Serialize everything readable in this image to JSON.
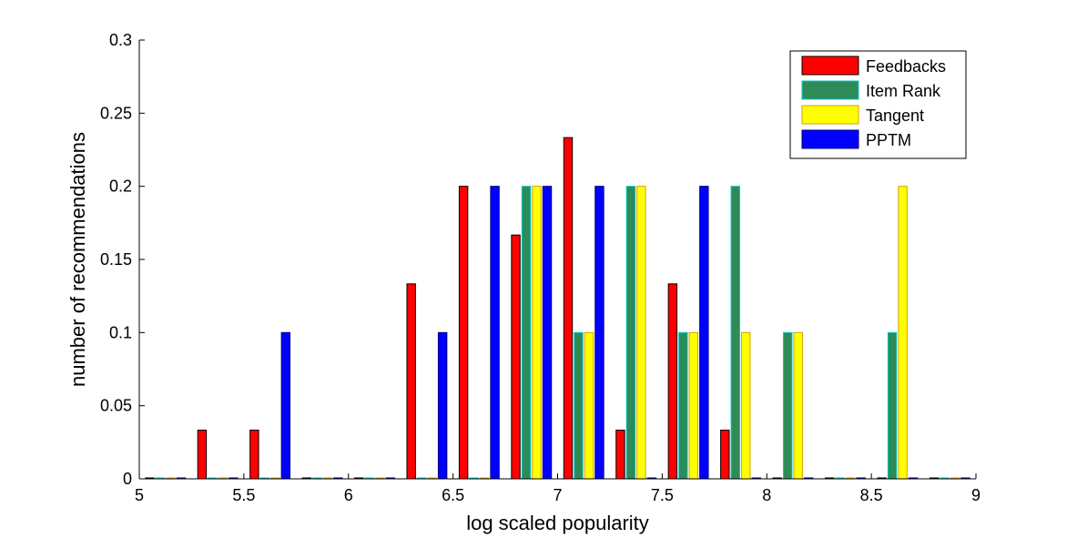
{
  "chart_data": {
    "type": "bar",
    "title": "",
    "xlabel": "log scaled popularity",
    "ylabel": "number of recommendations",
    "xlim": [
      5,
      9
    ],
    "ylim": [
      0,
      0.3
    ],
    "xticks": [
      "5",
      "5.5",
      "6",
      "6.5",
      "7",
      "7.5",
      "8",
      "8.5",
      "9"
    ],
    "yticks": [
      "0",
      "0.05",
      "0.1",
      "0.15",
      "0.2",
      "0.25",
      "0.3"
    ],
    "bin_centers": [
      5.125,
      5.375,
      5.625,
      5.875,
      6.125,
      6.375,
      6.625,
      6.875,
      7.125,
      7.375,
      7.625,
      7.875,
      8.125,
      8.375,
      8.625,
      8.875
    ],
    "legend_position": "top-right",
    "grid": false,
    "series": [
      {
        "name": "Feedbacks",
        "color": "#ff0000",
        "edge": "#000000",
        "values": [
          0,
          0.0333,
          0.0333,
          0,
          0,
          0.1333,
          0.2,
          0.1667,
          0.2333,
          0.0333,
          0.1333,
          0.0333,
          0,
          0,
          0,
          0
        ]
      },
      {
        "name": "Item Rank",
        "color": "#2e8b57",
        "edge": "#00c8c8",
        "values": [
          0,
          0,
          0,
          0,
          0,
          0,
          0,
          0.2,
          0.1,
          0.2,
          0.1,
          0.2,
          0.1,
          0,
          0.1,
          0
        ]
      },
      {
        "name": "Tangent",
        "color": "#ffff00",
        "edge": "#d4a000",
        "values": [
          0,
          0,
          0,
          0,
          0,
          0,
          0,
          0.2,
          0.1,
          0.2,
          0.1,
          0.1,
          0.1,
          0,
          0.2,
          0
        ]
      },
      {
        "name": "PPTM",
        "color": "#0000ff",
        "edge": "#000080",
        "values": [
          0,
          0,
          0.1,
          0,
          0,
          0.1,
          0.2,
          0.2,
          0.2,
          0,
          0.2,
          0,
          0,
          0,
          0,
          0
        ]
      }
    ]
  }
}
